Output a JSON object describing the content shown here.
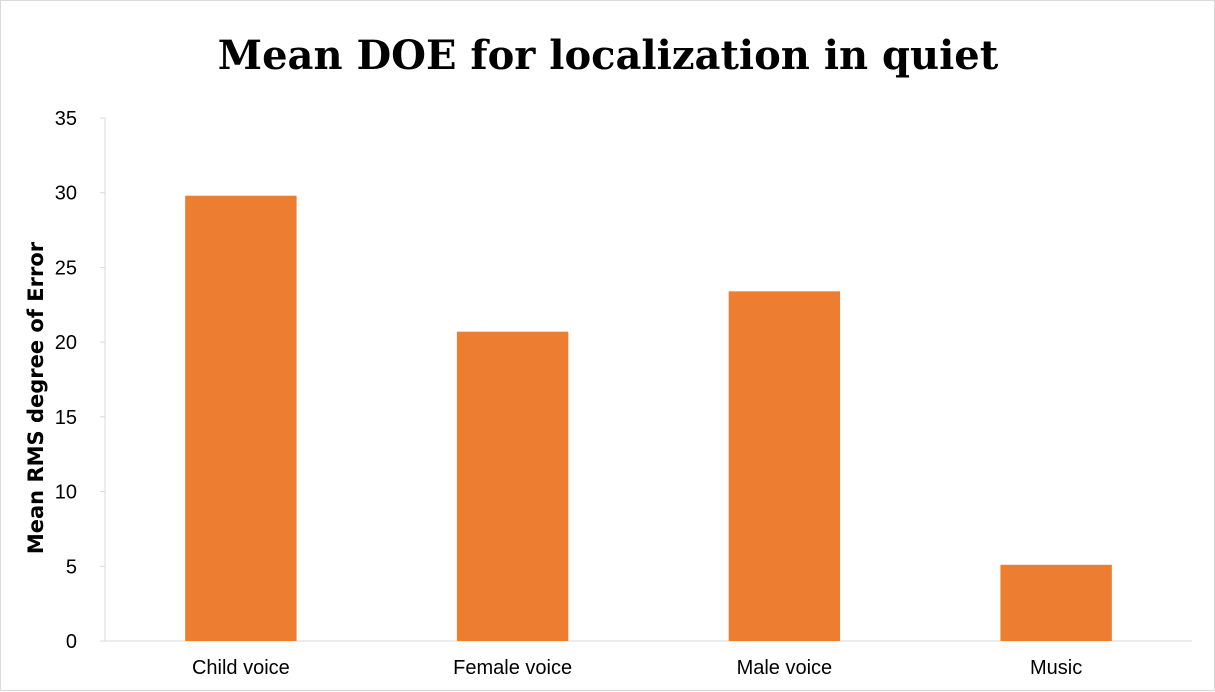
{
  "chart_data": {
    "type": "bar",
    "title": "Mean DOE for localization in quiet",
    "xlabel": "",
    "ylabel": "Mean RMS degree of Error",
    "categories": [
      "Child voice",
      "Female voice",
      "Male voice",
      "Music"
    ],
    "values": [
      29.8,
      20.7,
      23.4,
      5.1
    ],
    "ylim": [
      0,
      35
    ],
    "yticks": [
      "0",
      "5",
      "10",
      "15",
      "20",
      "25",
      "30",
      "35"
    ],
    "grid": false,
    "legend": "none",
    "bar_color": "#ed7d31",
    "axis_color": "#d9d9d9",
    "text_color": "#000000"
  }
}
